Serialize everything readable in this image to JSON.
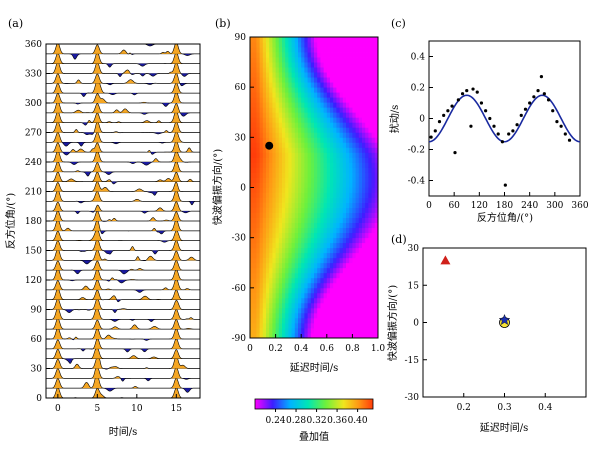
{
  "colors": {
    "orange_fill": "#F5A623",
    "blue_fill": "#1A1AA0",
    "curve_blue": "#1A2AA0",
    "red_triangle": "#D0201A",
    "star_blue": "#1A2FB0",
    "yellow_circle": "#F5E23A"
  },
  "chart_data": [
    {
      "panel": "(a)",
      "type": "line",
      "title": "",
      "xlabel": "时间/s",
      "ylabel": "反方位角/(°)",
      "xticks": [
        "0",
        "5",
        "10",
        "15"
      ],
      "yticks": [
        "0",
        "30",
        "60",
        "90",
        "120",
        "150",
        "180",
        "210",
        "240",
        "270",
        "300",
        "330",
        "360"
      ],
      "xlim": [
        -1.5,
        18
      ],
      "ylim": [
        0,
        360
      ],
      "trace_spacing_deg": 10,
      "arrivals_s": [
        0,
        5,
        15
      ]
    },
    {
      "panel": "(b)",
      "type": "heatmap",
      "xlabel": "延迟时间/s",
      "ylabel": "快波偏振方向/(°)",
      "xticks": [
        "0",
        "0.2",
        "0.4",
        "0.6",
        "0.8",
        "1.0"
      ],
      "yticks": [
        "-90",
        "-60",
        "-30",
        "0",
        "30",
        "60",
        "90"
      ],
      "xlim": [
        0,
        1.0
      ],
      "ylim": [
        -90,
        90
      ],
      "best_point": {
        "delay_s": 0.15,
        "phi_deg": 25
      },
      "colorbar": {
        "label": "叠加值",
        "ticks": [
          "0.24",
          "0.28",
          "0.32",
          "0.36",
          "0.40"
        ],
        "range": [
          0.2,
          0.43
        ]
      }
    },
    {
      "panel": "(c)",
      "type": "scatter",
      "xlabel": "反方位角/(°)",
      "ylabel": "扰动/s",
      "xticks": [
        "0",
        "60",
        "120",
        "180",
        "240",
        "300",
        "360"
      ],
      "yticks": [
        "-0.4",
        "-0.2",
        "0",
        "0.2",
        "0.4"
      ],
      "xlim": [
        0,
        360
      ],
      "ylim": [
        -0.5,
        0.5
      ],
      "fit_curve": {
        "amplitude": 0.15,
        "period_deg": 180,
        "peak_deg": 90
      },
      "points": [
        [
          5,
          -0.12
        ],
        [
          15,
          -0.08
        ],
        [
          25,
          -0.02
        ],
        [
          35,
          0.02
        ],
        [
          45,
          0.05
        ],
        [
          55,
          0.08
        ],
        [
          62,
          -0.22
        ],
        [
          70,
          0.12
        ],
        [
          80,
          0.16
        ],
        [
          90,
          0.18
        ],
        [
          100,
          -0.05
        ],
        [
          105,
          0.19
        ],
        [
          115,
          0.17
        ],
        [
          125,
          0.1
        ],
        [
          135,
          0.05
        ],
        [
          145,
          0.0
        ],
        [
          155,
          -0.05
        ],
        [
          165,
          -0.1
        ],
        [
          175,
          -0.15
        ],
        [
          182,
          -0.43
        ],
        [
          190,
          -0.1
        ],
        [
          200,
          -0.08
        ],
        [
          210,
          -0.04
        ],
        [
          220,
          0.02
        ],
        [
          230,
          0.06
        ],
        [
          240,
          0.1
        ],
        [
          250,
          0.14
        ],
        [
          260,
          0.18
        ],
        [
          268,
          0.27
        ],
        [
          275,
          0.16
        ],
        [
          285,
          0.12
        ],
        [
          295,
          0.05
        ],
        [
          305,
          -0.02
        ],
        [
          315,
          -0.05
        ],
        [
          325,
          -0.1
        ],
        [
          335,
          -0.14
        ]
      ]
    },
    {
      "panel": "(d)",
      "type": "scatter",
      "xlabel": "延迟时间/s",
      "ylabel": "快波偏振方向/(°)",
      "xticks": [
        "0.2",
        "0.3",
        "0.4"
      ],
      "yticks": [
        "-30",
        "-15",
        "0",
        "15",
        "30"
      ],
      "xlim": [
        0.1,
        0.5
      ],
      "ylim": [
        -30,
        30
      ],
      "points": [
        {
          "name": "triangle",
          "x": 0.155,
          "y": 25
        },
        {
          "name": "circle",
          "x": 0.3,
          "y": 0
        },
        {
          "name": "star",
          "x": 0.3,
          "y": 1
        }
      ]
    }
  ]
}
